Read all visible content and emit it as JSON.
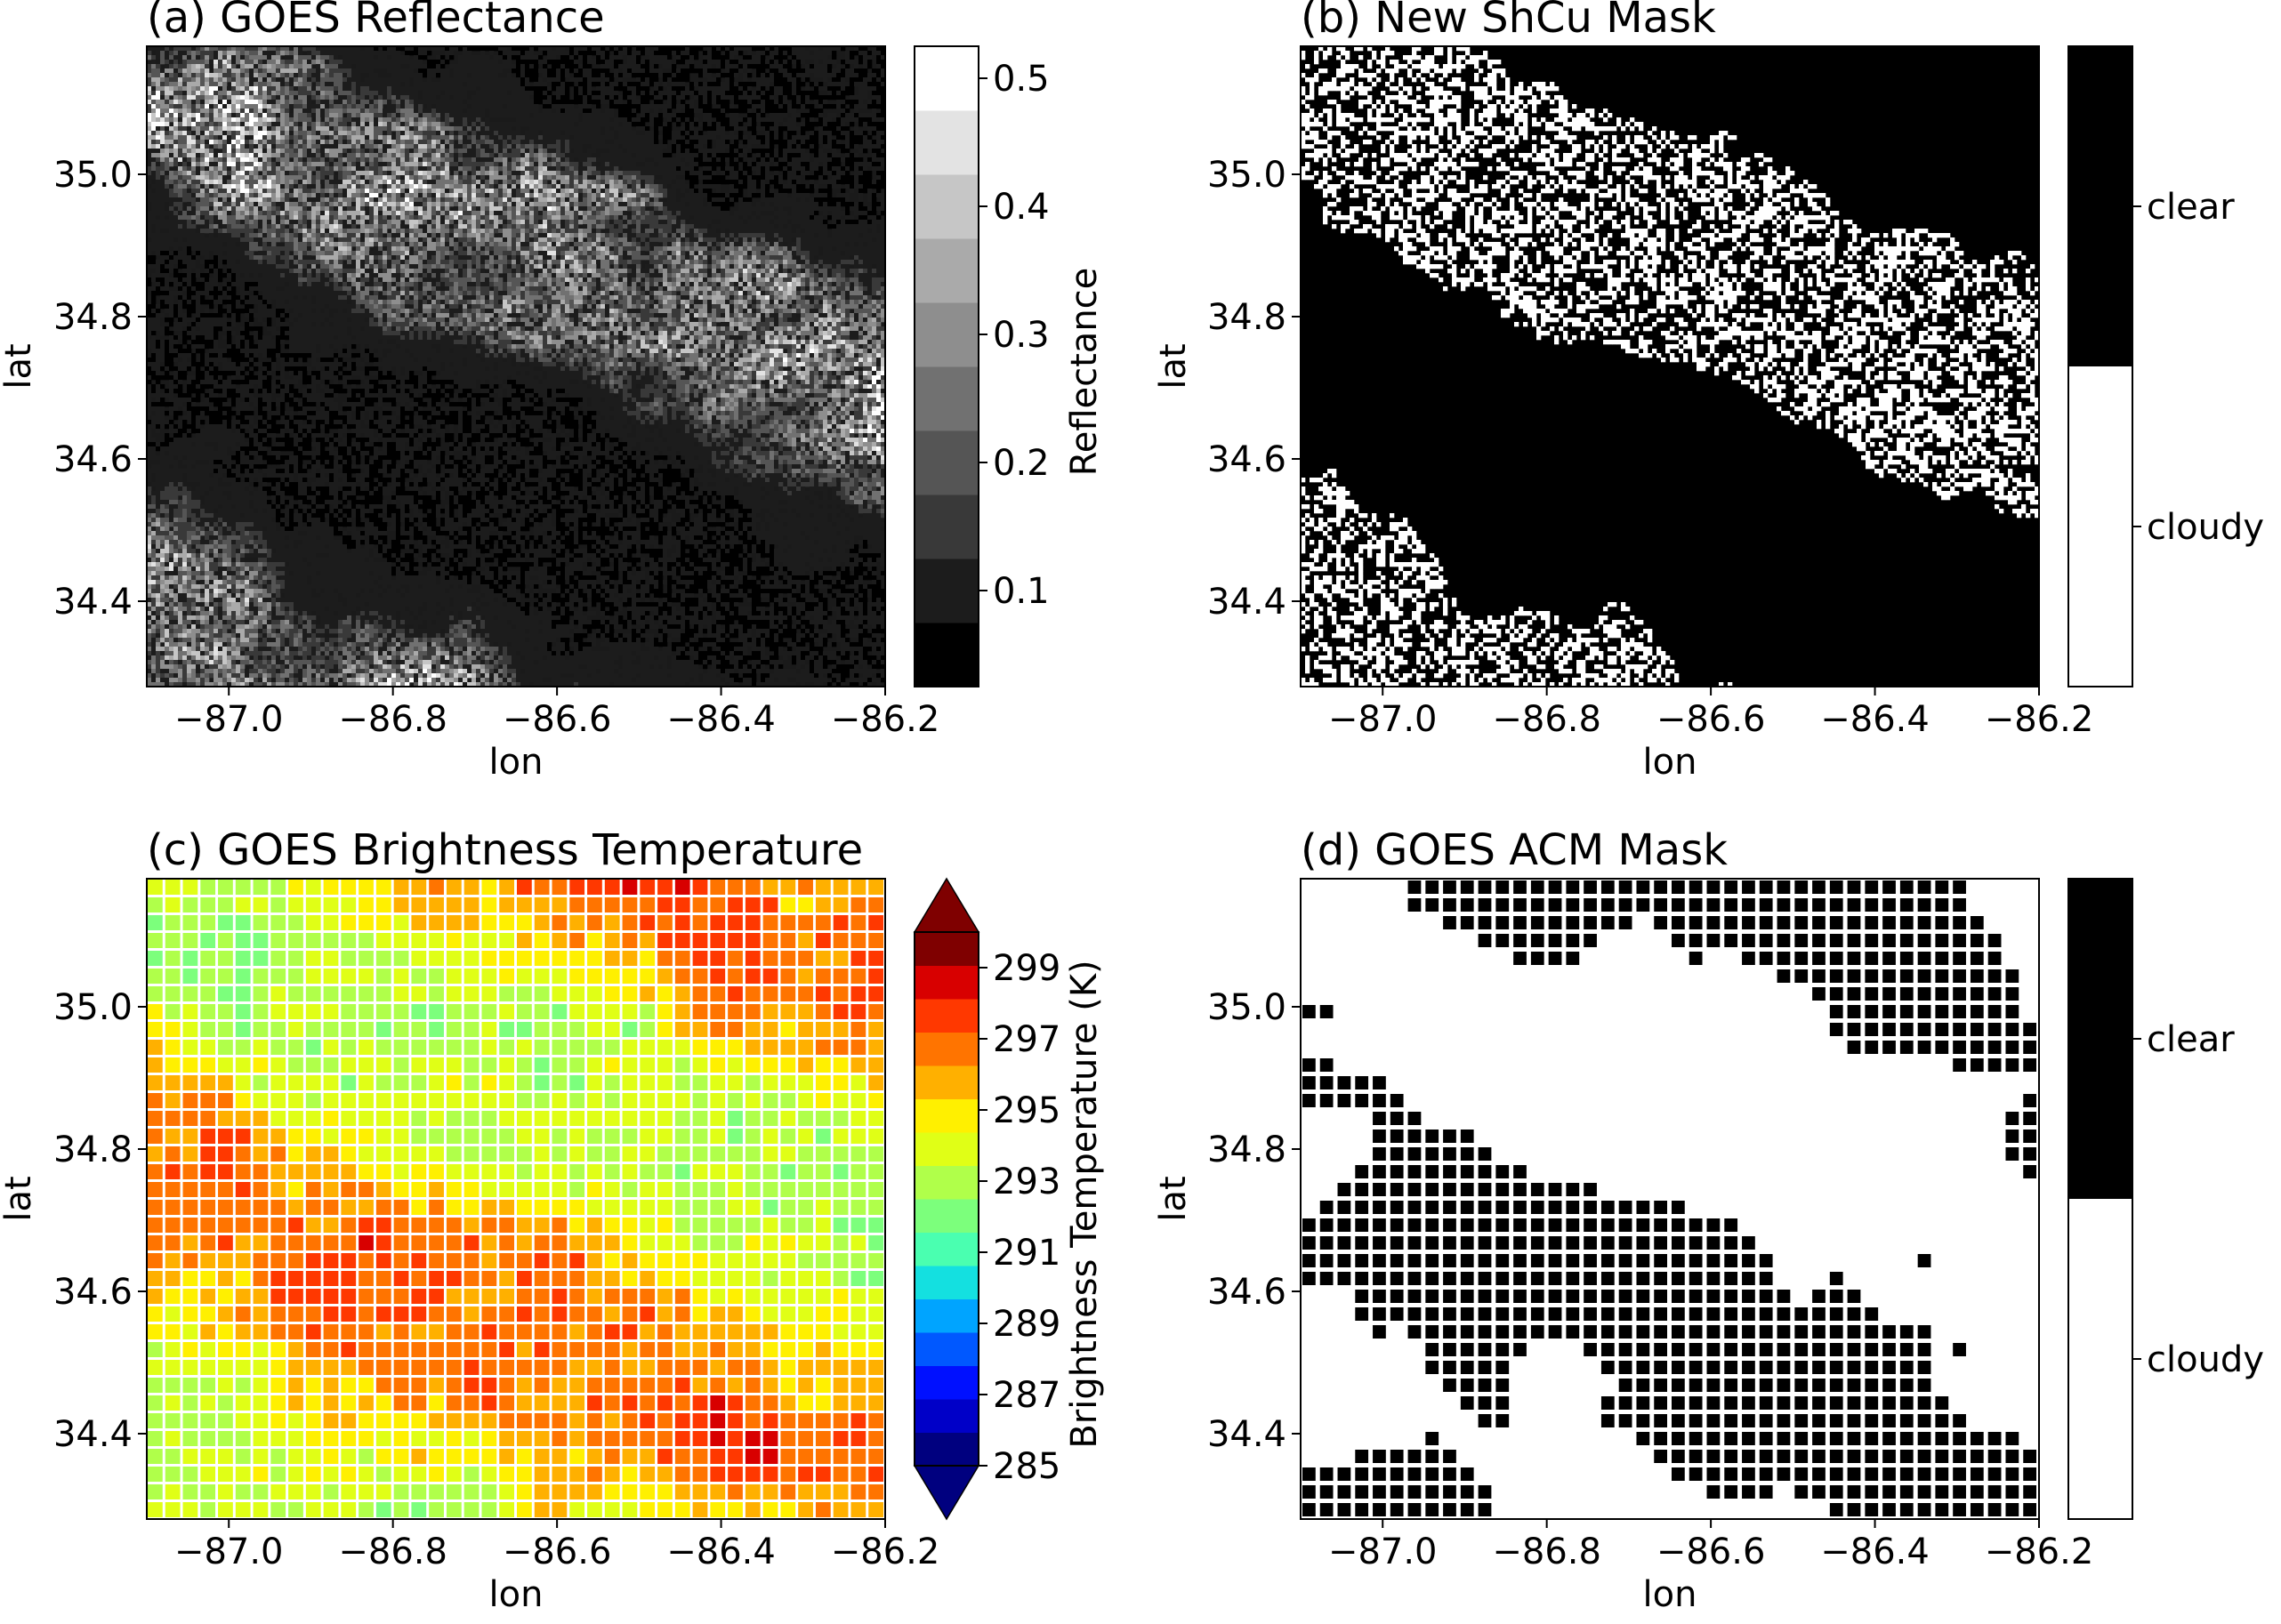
{
  "chart_data": [
    {
      "type": "heatmap",
      "title": "(a) GOES Reflectance",
      "xlabel": "lon",
      "ylabel": "lat",
      "xlim": [
        -87.1,
        -86.2
      ],
      "ylim": [
        34.28,
        35.18
      ],
      "xticks": [
        "−87.0",
        "−86.8",
        "−86.6",
        "−86.4",
        "−86.2"
      ],
      "xtick_values": [
        -87.0,
        -86.8,
        -86.6,
        -86.4,
        -86.2
      ],
      "yticks": [
        "34.4",
        "34.6",
        "34.8",
        "35.0"
      ],
      "ytick_values": [
        34.4,
        34.6,
        34.8,
        35.0
      ],
      "colorbar": {
        "label": "Reflectance",
        "range": [
          0.025,
          0.525
        ],
        "levels": 10,
        "ticks": [
          "0.1",
          "0.2",
          "0.3",
          "0.4",
          "0.5"
        ],
        "tick_values": [
          0.1,
          0.2,
          0.3,
          0.4,
          0.5
        ],
        "colormap": "greys",
        "colors": [
          "#000000",
          "#ffffff"
        ]
      },
      "grid": false
    },
    {
      "type": "heatmap",
      "title": "(b) New ShCu Mask",
      "xlabel": "lon",
      "ylabel": "lat",
      "xlim": [
        -87.1,
        -86.2
      ],
      "ylim": [
        34.28,
        35.18
      ],
      "xticks": [
        "−87.0",
        "−86.8",
        "−86.6",
        "−86.4",
        "−86.2"
      ],
      "xtick_values": [
        -87.0,
        -86.8,
        -86.6,
        -86.4,
        -86.2
      ],
      "yticks": [
        "34.4",
        "34.6",
        "34.8",
        "35.0"
      ],
      "ytick_values": [
        34.4,
        34.6,
        34.8,
        35.0
      ],
      "colorbar": {
        "categories": [
          "clear",
          "cloudy"
        ],
        "colors": [
          "#000000",
          "#ffffff"
        ]
      },
      "grid": false
    },
    {
      "type": "heatmap",
      "title": "(c) GOES Brightness Temperature",
      "xlabel": "lon",
      "ylabel": "lat",
      "xlim": [
        -87.1,
        -86.2
      ],
      "ylim": [
        34.28,
        35.18
      ],
      "xticks": [
        "−87.0",
        "−86.8",
        "−86.6",
        "−86.4",
        "−86.2"
      ],
      "xtick_values": [
        -87.0,
        -86.8,
        -86.6,
        -86.4,
        -86.2
      ],
      "yticks": [
        "34.4",
        "34.6",
        "34.8",
        "35.0"
      ],
      "ytick_values": [
        34.4,
        34.6,
        34.8,
        35.0
      ],
      "colorbar": {
        "label": "Brightness Temperature (K)",
        "range": [
          285,
          300
        ],
        "levels": 16,
        "extend": "both",
        "ticks": [
          "285",
          "287",
          "289",
          "291",
          "293",
          "295",
          "297",
          "299"
        ],
        "tick_values": [
          285,
          287,
          289,
          291,
          293,
          295,
          297,
          299
        ],
        "colormap": "jet",
        "colors": [
          "#00007f",
          "#0000c8",
          "#0010ff",
          "#0058ff",
          "#00a4ff",
          "#14e0e0",
          "#4affb0",
          "#7cff7c",
          "#b0ff4a",
          "#e0ff16",
          "#fff000",
          "#ffb000",
          "#ff7400",
          "#ff3800",
          "#d80000",
          "#7f0000"
        ],
        "cell_gap_color": "#ffffff"
      },
      "grid": false
    },
    {
      "type": "heatmap",
      "title": "(d) GOES ACM Mask",
      "xlabel": "lon",
      "ylabel": "lat",
      "xlim": [
        -87.1,
        -86.2
      ],
      "ylim": [
        34.28,
        35.18
      ],
      "xticks": [
        "−87.0",
        "−86.8",
        "−86.6",
        "−86.4",
        "−86.2"
      ],
      "xtick_values": [
        -87.0,
        -86.8,
        -86.6,
        -86.4,
        -86.2
      ],
      "yticks": [
        "34.4",
        "34.6",
        "34.8",
        "35.0"
      ],
      "ytick_values": [
        34.4,
        34.6,
        34.8,
        35.0
      ],
      "colorbar": {
        "categories": [
          "clear",
          "cloudy"
        ],
        "colors": [
          "#000000",
          "#ffffff"
        ]
      },
      "grid": false
    }
  ]
}
